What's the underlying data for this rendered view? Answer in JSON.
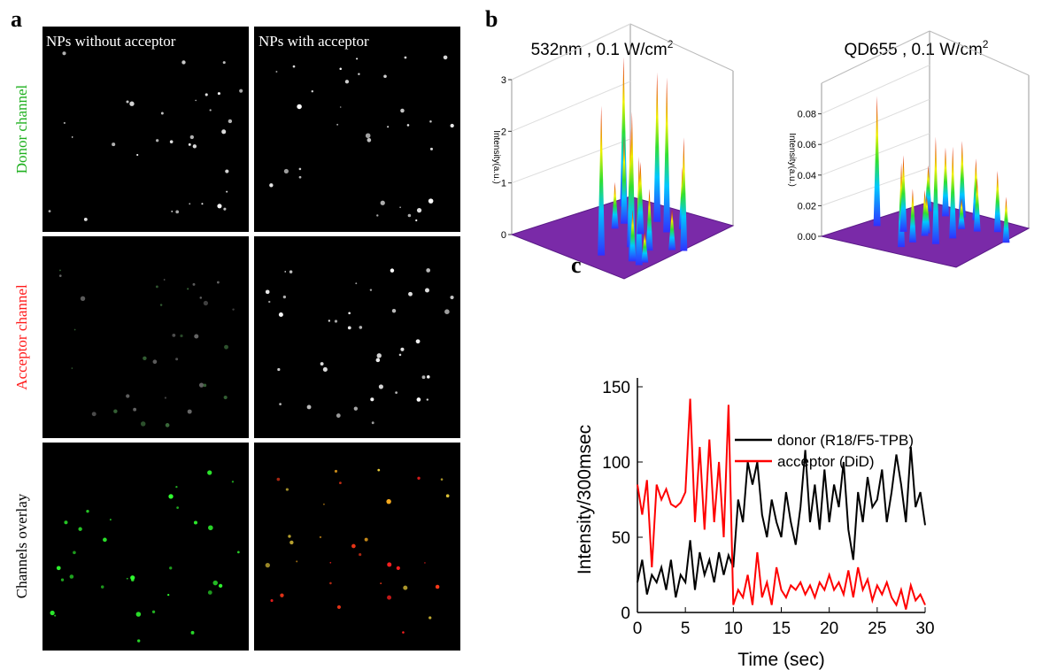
{
  "panel_labels": [
    "a",
    "b",
    "c"
  ],
  "panel_a": {
    "column_titles": [
      "NPs without acceptor",
      "NPs with acceptor"
    ],
    "row_titles": [
      "Donor channel",
      "Acceptor channel",
      "Channels overlay"
    ]
  },
  "chart_data": [
    {
      "type": "surface3d",
      "title": "532nm , 0.1 W/cm",
      "title_superscript": "2",
      "zlabel": "Intensity(a.u.)",
      "zlim": [
        0,
        3
      ],
      "zticks": [
        0,
        1,
        2,
        3
      ],
      "peaks": [
        2.9,
        3.0,
        2.9,
        2.3,
        2.9,
        2.1,
        2.9,
        1.4,
        1.2,
        2.2,
        1.7,
        1.0,
        0.8,
        1.2,
        0.6,
        0.9
      ]
    },
    {
      "type": "surface3d",
      "title": "QD655 , 0.1 W/cm",
      "title_superscript": "2",
      "zlabel": "Intensity(a.u.)",
      "zlim": [
        0,
        0.1
      ],
      "zticks": [
        {
          "value": 0,
          "label": "0.00"
        },
        0.02,
        0.04,
        0.06,
        0.08
      ],
      "peaks": [
        0.085,
        0.07,
        0.055,
        0.05,
        0.045,
        0.04,
        0.05,
        0.035,
        0.03,
        0.06,
        0.04,
        0.025,
        0.03,
        0.035,
        0.02,
        0.03
      ]
    },
    {
      "type": "line",
      "xlabel": "Time (sec)",
      "ylabel": "Intensity/300msec",
      "xlim": [
        0,
        30
      ],
      "ylim": [
        0,
        150
      ],
      "xticks": [
        0,
        5,
        10,
        15,
        20,
        25,
        30
      ],
      "yticks": [
        0,
        50,
        100,
        150
      ],
      "x": [
        0,
        0.5,
        1,
        1.5,
        2,
        2.5,
        3,
        3.5,
        4,
        4.5,
        5,
        5.5,
        6,
        6.5,
        7,
        7.5,
        8,
        8.5,
        9,
        9.5,
        10,
        10.5,
        11,
        11.5,
        12,
        12.5,
        13,
        13.5,
        14,
        14.5,
        15,
        15.5,
        16,
        16.5,
        17,
        17.5,
        18,
        18.5,
        19,
        19.5,
        20,
        20.5,
        21,
        21.5,
        22,
        22.5,
        23,
        23.5,
        24,
        24.5,
        25,
        25.5,
        26,
        26.5,
        27,
        27.5,
        28,
        28.5,
        29,
        29.5,
        30
      ],
      "series": [
        {
          "name": "donor (R18/F5-TPB)",
          "color": "#000000",
          "values": [
            20,
            35,
            12,
            25,
            20,
            30,
            15,
            35,
            10,
            25,
            20,
            48,
            15,
            40,
            25,
            35,
            20,
            40,
            25,
            38,
            30,
            75,
            60,
            100,
            85,
            100,
            65,
            50,
            75,
            60,
            50,
            80,
            60,
            45,
            70,
            108,
            60,
            85,
            55,
            95,
            60,
            85,
            70,
            100,
            55,
            35,
            80,
            60,
            90,
            70,
            75,
            95,
            60,
            80,
            105,
            85,
            60,
            110,
            70,
            80,
            58
          ]
        },
        {
          "name": "acceptor (DiD)",
          "color": "#ff0000",
          "values": [
            85,
            65,
            88,
            30,
            85,
            75,
            82,
            72,
            70,
            73,
            80,
            142,
            60,
            110,
            55,
            115,
            60,
            100,
            50,
            138,
            5,
            15,
            10,
            25,
            5,
            40,
            10,
            20,
            5,
            30,
            15,
            10,
            18,
            15,
            20,
            12,
            18,
            10,
            20,
            15,
            25,
            15,
            20,
            12,
            28,
            10,
            30,
            15,
            22,
            8,
            18,
            12,
            20,
            10,
            5,
            15,
            2,
            18,
            8,
            12,
            5
          ]
        }
      ]
    }
  ]
}
